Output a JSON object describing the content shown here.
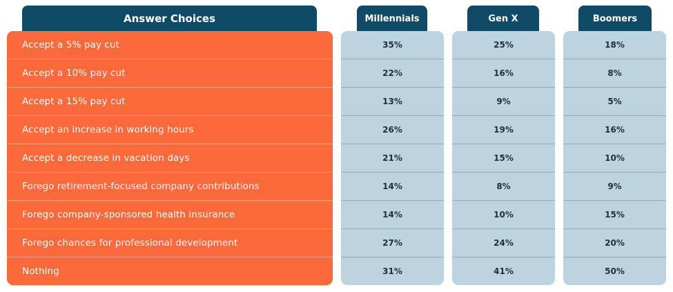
{
  "chart_data": {
    "type": "table",
    "columns": [
      "Answer Choices",
      "Millennials",
      "Gen X",
      "Boomers"
    ],
    "rows": [
      {
        "label": "Accept a 5% pay cut",
        "Millennials": "35%",
        "Gen X": "25%",
        "Boomers": "18%"
      },
      {
        "label": "Accept a 10% pay cut",
        "Millennials": "22%",
        "Gen X": "16%",
        "Boomers": "8%"
      },
      {
        "label": "Accept a 15% pay cut",
        "Millennials": "13%",
        "Gen X": "9%",
        "Boomers": "5%"
      },
      {
        "label": "Accept an increase in working hours",
        "Millennials": "26%",
        "Gen X": "19%",
        "Boomers": "16%"
      },
      {
        "label": "Accept a decrease in vacation days",
        "Millennials": "21%",
        "Gen X": "15%",
        "Boomers": "10%"
      },
      {
        "label": "Forego retirement-focused company contributions",
        "Millennials": "14%",
        "Gen X": "8%",
        "Boomers": "9%"
      },
      {
        "label": "Forego company-sponsored health insurance",
        "Millennials": "14%",
        "Gen X": "10%",
        "Boomers": "15%"
      },
      {
        "label": "Forego chances for professional development",
        "Millennials": "27%",
        "Gen X": "24%",
        "Boomers": "20%"
      },
      {
        "label": "Nothing",
        "Millennials": "31%",
        "Gen X": "41%",
        "Boomers": "50%"
      }
    ],
    "colors": {
      "header": "#0f4a66",
      "answer_panel": "#fc6a3c",
      "value_panel": "#bdd4e0"
    }
  }
}
